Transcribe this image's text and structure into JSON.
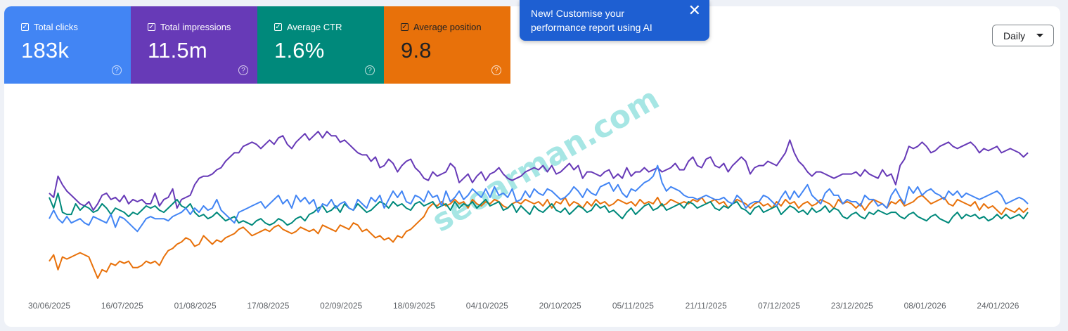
{
  "metrics": [
    {
      "label": "Total clicks",
      "value": "183k",
      "color": "#4285f4"
    },
    {
      "label": "Total impressions",
      "value": "11.5m",
      "color": "#673ab7"
    },
    {
      "label": "Average CTR",
      "value": "1.6%",
      "color": "#00897b"
    },
    {
      "label": "Average position",
      "value": "9.8",
      "color": "#e8710a"
    }
  ],
  "checkbox_glyph": "✓",
  "help_glyph": "?",
  "banner": {
    "text": "New! Customise your performance report using AI",
    "close_glyph": "✕"
  },
  "granularity": {
    "selected": "Daily"
  },
  "watermark": "seoarman.com",
  "chart_data": {
    "type": "line",
    "x_ticks": [
      "30/06/2025",
      "16/07/2025",
      "01/08/2025",
      "17/08/2025",
      "02/09/2025",
      "18/09/2025",
      "04/10/2025",
      "20/10/2025",
      "05/11/2025",
      "21/11/2025",
      "07/12/2025",
      "23/12/2025",
      "08/01/2026",
      "24/01/2026"
    ],
    "series": [
      {
        "name": "Total impressions",
        "color": "#673ab7",
        "values": [
          45,
          43,
          53,
          49,
          46,
          44,
          42,
          40,
          39,
          41,
          37,
          40,
          44,
          45,
          42,
          43,
          41,
          44,
          40,
          42,
          41,
          42,
          40,
          40,
          45,
          39,
          42,
          43,
          47,
          38,
          42,
          43,
          44,
          49,
          52,
          53,
          53,
          54,
          56,
          57,
          60,
          62,
          64,
          64,
          67,
          68,
          69,
          68,
          66,
          68,
          70,
          68,
          71,
          72,
          68,
          66,
          69,
          71,
          73,
          70,
          72,
          74,
          71,
          74,
          72,
          72,
          69,
          70,
          68,
          66,
          64,
          63,
          63,
          60,
          62,
          57,
          58,
          61,
          59,
          55,
          58,
          60,
          61,
          57,
          55,
          52,
          51,
          55,
          53,
          54,
          55,
          59,
          57,
          50,
          52,
          54,
          50,
          53,
          55,
          51,
          54,
          55,
          57,
          54,
          52,
          51,
          52,
          53,
          55,
          56,
          57,
          56,
          58,
          55,
          58,
          54,
          55,
          57,
          59,
          56,
          58,
          52,
          55,
          55,
          54,
          53,
          55,
          56,
          52,
          54,
          52,
          57,
          53,
          55,
          55,
          57,
          55,
          56,
          57,
          55,
          56,
          57,
          59,
          56,
          56,
          60,
          62,
          58,
          57,
          61,
          62,
          58,
          57,
          59,
          55,
          58,
          60,
          62,
          60,
          54,
          57,
          58,
          58,
          60,
          59,
          58,
          61,
          64,
          70,
          64,
          60,
          58,
          55,
          53,
          55,
          55,
          54,
          53,
          52,
          53,
          54,
          54,
          54,
          55,
          53,
          56,
          54,
          53,
          52,
          56,
          53,
          54,
          49,
          58,
          61,
          67,
          66,
          67,
          69,
          67,
          64,
          65,
          67,
          68,
          69,
          67,
          66,
          67,
          68,
          69,
          67,
          64,
          66,
          65,
          66,
          67,
          64,
          65,
          66,
          65,
          64,
          62,
          64
        ],
        "style": "default"
      },
      {
        "name": "Total clicks",
        "color": "#4285f4",
        "values": [
          33,
          37,
          33,
          31,
          34,
          31,
          32,
          33,
          31,
          30,
          34,
          33,
          32,
          31,
          35,
          29,
          34,
          33,
          31,
          29,
          27,
          30,
          33,
          34,
          33,
          33,
          33,
          32,
          34,
          35,
          36,
          38,
          35,
          38,
          36,
          39,
          37,
          38,
          42,
          37,
          35,
          33,
          31,
          36,
          37,
          38,
          39,
          40,
          41,
          38,
          40,
          42,
          44,
          40,
          42,
          38,
          44,
          41,
          43,
          40,
          42,
          36,
          40,
          39,
          42,
          38,
          40,
          41,
          38,
          37,
          42,
          40,
          38,
          43,
          41,
          44,
          38,
          42,
          46,
          43,
          46,
          41,
          40,
          44,
          43,
          41,
          46,
          43,
          44,
          39,
          46,
          41,
          43,
          46,
          42,
          44,
          47,
          45,
          43,
          47,
          43,
          48,
          44,
          45,
          43,
          47,
          41,
          42,
          46,
          43,
          47,
          45,
          44,
          47,
          46,
          44,
          42,
          43,
          45,
          48,
          46,
          43,
          47,
          45,
          44,
          48,
          49,
          50,
          46,
          49,
          45,
          43,
          47,
          46,
          48,
          50,
          51,
          53,
          58,
          50,
          46,
          48,
          47,
          46,
          44,
          43,
          43,
          42,
          43,
          44,
          43,
          42,
          42,
          43,
          41,
          40,
          44,
          42,
          38,
          40,
          41,
          41,
          44,
          43,
          41,
          39,
          43,
          46,
          42,
          46,
          43,
          46,
          49,
          44,
          42,
          40,
          45,
          47,
          44,
          44,
          40,
          42,
          41,
          41,
          39,
          44,
          42,
          42,
          39,
          40,
          38,
          44,
          47,
          43,
          40,
          48,
          45,
          48,
          44,
          46,
          47,
          45,
          44,
          42,
          46,
          44,
          46,
          43,
          45,
          44,
          43,
          42,
          43,
          44,
          45,
          46,
          44,
          40,
          41,
          42,
          43,
          42,
          40
        ]
      },
      {
        "name": "Average CTR",
        "color": "#00897b",
        "values": [
          43,
          38,
          45,
          36,
          35,
          35,
          40,
          37,
          39,
          38,
          36,
          37,
          40,
          38,
          35,
          38,
          37,
          36,
          34,
          36,
          35,
          37,
          39,
          38,
          39,
          37,
          36,
          38,
          40,
          42,
          39,
          38,
          40,
          36,
          34,
          35,
          33,
          34,
          36,
          34,
          32,
          33,
          34,
          31,
          32,
          31,
          30,
          32,
          33,
          31,
          30,
          31,
          33,
          32,
          30,
          31,
          33,
          34,
          32,
          35,
          36,
          38,
          39,
          36,
          37,
          39,
          36,
          40,
          38,
          37,
          40,
          38,
          36,
          37,
          39,
          41,
          40,
          38,
          41,
          39,
          40,
          38,
          37,
          40,
          41,
          39,
          40,
          41,
          38,
          39,
          40,
          37,
          41,
          38,
          40,
          39,
          41,
          38,
          40,
          42,
          39,
          40,
          41,
          37,
          38,
          40,
          36,
          39,
          37,
          35,
          39,
          37,
          36,
          38,
          40,
          37,
          36,
          38,
          35,
          37,
          39,
          38,
          36,
          37,
          40,
          38,
          39,
          36,
          37,
          35,
          33,
          36,
          38,
          35,
          37,
          39,
          40,
          37,
          38,
          40,
          37,
          38,
          39,
          40,
          38,
          41,
          40,
          38,
          39,
          40,
          41,
          38,
          37,
          39,
          38,
          40,
          41,
          38,
          37,
          35,
          38,
          39,
          36,
          37,
          38,
          39,
          35,
          37,
          39,
          38,
          36,
          37,
          35,
          38,
          36,
          37,
          39,
          36,
          38,
          37,
          34,
          33,
          35,
          36,
          34,
          33,
          36,
          35,
          37,
          36,
          35,
          36,
          36,
          34,
          33,
          35,
          36,
          34,
          33,
          32,
          34,
          35,
          33,
          32,
          31,
          34,
          36,
          33,
          35,
          34,
          35,
          33,
          34,
          32,
          33,
          35,
          33,
          35,
          33,
          34,
          35,
          33,
          36
        ]
      },
      {
        "name": "Average position",
        "color": "#e8710a",
        "values": [
          13,
          16,
          9,
          15,
          14,
          15,
          16,
          17,
          16,
          15,
          10,
          5,
          9,
          8,
          12,
          11,
          13,
          12,
          13,
          10,
          10,
          11,
          13,
          12,
          13,
          11,
          15,
          18,
          19,
          21,
          22,
          24,
          23,
          20,
          21,
          25,
          23,
          21,
          23,
          22,
          24,
          25,
          26,
          28,
          29,
          27,
          25,
          26,
          27,
          28,
          27,
          29,
          30,
          28,
          27,
          26,
          27,
          29,
          28,
          27,
          28,
          26,
          30,
          29,
          28,
          27,
          30,
          29,
          28,
          31,
          30,
          27,
          28,
          26,
          24,
          25,
          23,
          24,
          22,
          25,
          24,
          27,
          28,
          30,
          32,
          34,
          38,
          40,
          39,
          41,
          39,
          40,
          42,
          40,
          41,
          38,
          42,
          40,
          39,
          41,
          40,
          42,
          41,
          39,
          38,
          40,
          41,
          40,
          42,
          41,
          40,
          41,
          39,
          42,
          38,
          41,
          40,
          43,
          39,
          41,
          40,
          38,
          41,
          39,
          42,
          40,
          41,
          39,
          40,
          42,
          41,
          40,
          41,
          39,
          42,
          40,
          41,
          40,
          43,
          39,
          40,
          42,
          41,
          40,
          41,
          40,
          42,
          41,
          43,
          40,
          41,
          42,
          40,
          41,
          38,
          40,
          42,
          41,
          40,
          38,
          40,
          41,
          39,
          40,
          38,
          41,
          39,
          42,
          40,
          41,
          38,
          40,
          41,
          39,
          40,
          42,
          41,
          40,
          38,
          42,
          40,
          41,
          40,
          38,
          40,
          37,
          40,
          42,
          41,
          40,
          38,
          41,
          40,
          42,
          39,
          40,
          41,
          43,
          44,
          42,
          40,
          41,
          42,
          43,
          40,
          39,
          42,
          41,
          40,
          39,
          41,
          37,
          40,
          38,
          39,
          37,
          35,
          38,
          37,
          36,
          38,
          36,
          38
        ]
      }
    ]
  }
}
